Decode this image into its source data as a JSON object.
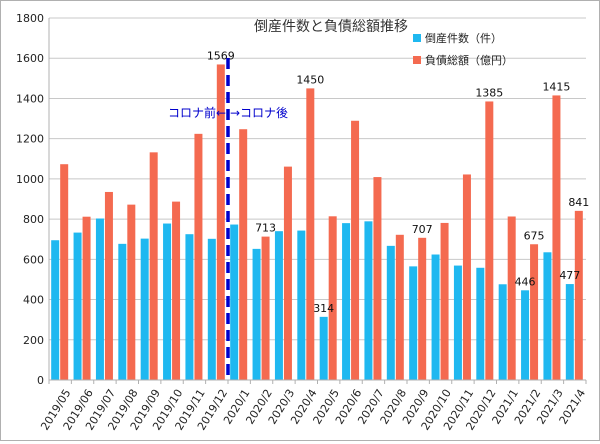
{
  "chart_data": {
    "type": "bar",
    "title": "倒産件数と負債総額推移",
    "xlabel": "",
    "ylabel": "",
    "ylim": [
      0,
      1800
    ],
    "yticks": [
      0,
      200,
      400,
      600,
      800,
      1000,
      1200,
      1400,
      1600,
      1800
    ],
    "grid": true,
    "legend_position": "top-right",
    "categories": [
      "2019/05",
      "2019/06",
      "2019/07",
      "2019/08",
      "2019/09",
      "2019/10",
      "2019/11",
      "2019/12",
      "2020/1",
      "2020/2",
      "2020/3",
      "2020/4",
      "2020/5",
      "2020/6",
      "2020/7",
      "2020/8",
      "2020/9",
      "2020/10",
      "2020/11",
      "2020/12",
      "2021/1",
      "2021/2",
      "2021/3",
      "2021/4"
    ],
    "series": [
      {
        "name": "倒産件数（件）",
        "color": "#1fb8f0",
        "values": [
          695,
          733,
          803,
          677,
          703,
          778,
          725,
          702,
          773,
          652,
          740,
          743,
          314,
          780,
          789,
          667,
          565,
          624,
          569,
          558,
          476,
          446,
          635,
          477
        ],
        "labels": {
          "12": "314",
          "21": "446",
          "23": "477"
        }
      },
      {
        "name": "負債総額（億円）",
        "color": "#f46a50",
        "values": [
          1073,
          812,
          935,
          872,
          1132,
          887,
          1224,
          1569,
          1247,
          713,
          1061,
          1450,
          814,
          1289,
          1009,
          722,
          707,
          781,
          1022,
          1385,
          813,
          675,
          1415,
          841
        ],
        "labels": {
          "7": "1569",
          "9": "713",
          "11": "1450",
          "16": "707",
          "19": "1385",
          "21": "675",
          "22": "1415",
          "23": "841"
        }
      }
    ],
    "annotation": {
      "before_text": "コロナ前←",
      "after_text": "→コロナ後",
      "color": "#0000cc",
      "between_categories": [
        "2019/12",
        "2020/1"
      ]
    }
  }
}
